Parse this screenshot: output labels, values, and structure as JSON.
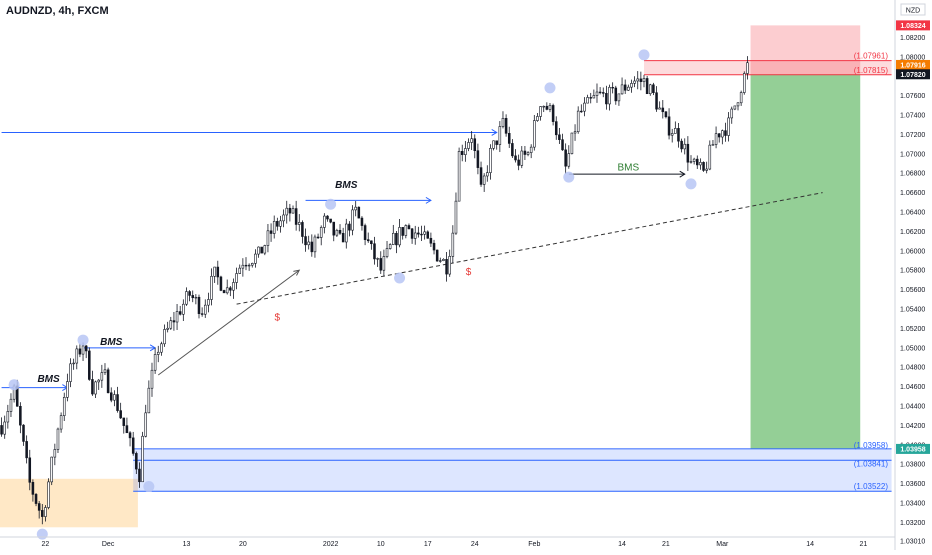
{
  "header": {
    "title": "AUDNZD, 4h, FXCM"
  },
  "currency_badge": "NZD",
  "chart_data": {
    "type": "candlestick",
    "symbol": "AUDNZD",
    "timeframe": "4h",
    "source": "FXCM",
    "ylim": [
      1.0305,
      1.084
    ],
    "y_ticks": [
      "1.08200",
      "1.08000",
      "1.07800",
      "1.07600",
      "1.07400",
      "1.07200",
      "1.07000",
      "1.06800",
      "1.06600",
      "1.06400",
      "1.06200",
      "1.06000",
      "1.05800",
      "1.05600",
      "1.05400",
      "1.05200",
      "1.05000",
      "1.04800",
      "1.04600",
      "1.04400",
      "1.04200",
      "1.04000",
      "1.03800",
      "1.03600",
      "1.03400",
      "1.03200",
      "1.03010"
    ],
    "x_ticks": [
      "22",
      "Dec",
      "13",
      "20",
      "2022",
      "10",
      "17",
      "24",
      "Feb",
      "14",
      "21",
      "Mar",
      "14",
      "21"
    ],
    "x_tick_index": [
      14,
      34,
      59,
      77,
      105,
      121,
      136,
      151,
      170,
      198,
      212,
      230,
      258,
      275
    ],
    "n_bars": 284,
    "last_bar": 238,
    "price_path": [
      [
        0,
        1.042
      ],
      [
        4,
        1.0455
      ],
      [
        9,
        1.036
      ],
      [
        13,
        1.0325
      ],
      [
        16,
        1.038
      ],
      [
        21,
        1.047
      ],
      [
        26,
        1.0505
      ],
      [
        29,
        1.046
      ],
      [
        33,
        1.047
      ],
      [
        37,
        1.044
      ],
      [
        41,
        1.04
      ],
      [
        44,
        1.037
      ],
      [
        46,
        1.044
      ],
      [
        50,
        1.05
      ],
      [
        55,
        1.053
      ],
      [
        60,
        1.0555
      ],
      [
        64,
        1.054
      ],
      [
        68,
        1.0575
      ],
      [
        72,
        1.056
      ],
      [
        77,
        1.059
      ],
      [
        82,
        1.0595
      ],
      [
        87,
        1.0625
      ],
      [
        92,
        1.064
      ],
      [
        96,
        1.062
      ],
      [
        99,
        1.06
      ],
      [
        103,
        1.063
      ],
      [
        108,
        1.061
      ],
      [
        113,
        1.064
      ],
      [
        118,
        1.06
      ],
      [
        121,
        1.058
      ],
      [
        125,
        1.061
      ],
      [
        129,
        1.0625
      ],
      [
        134,
        1.0615
      ],
      [
        138,
        1.06
      ],
      [
        142,
        1.0585
      ],
      [
        144,
        1.062
      ],
      [
        146,
        1.07
      ],
      [
        150,
        1.072
      ],
      [
        153,
        1.066
      ],
      [
        156,
        1.07
      ],
      [
        160,
        1.073
      ],
      [
        164,
        1.069
      ],
      [
        168,
        1.07
      ],
      [
        172,
        1.0755
      ],
      [
        176,
        1.074
      ],
      [
        178,
        1.071
      ],
      [
        180,
        1.0685
      ],
      [
        184,
        1.074
      ],
      [
        190,
        1.076
      ],
      [
        196,
        1.076
      ],
      [
        201,
        1.0775
      ],
      [
        205,
        1.0775
      ],
      [
        208,
        1.076
      ],
      [
        212,
        1.073
      ],
      [
        216,
        1.072
      ],
      [
        220,
        1.069
      ],
      [
        224,
        1.068
      ],
      [
        228,
        1.072
      ],
      [
        232,
        1.073
      ],
      [
        235,
        1.076
      ],
      [
        238,
        1.079
      ]
    ],
    "swing_points": [
      {
        "i": 4,
        "price": 1.0462
      },
      {
        "i": 13,
        "price": 1.0308
      },
      {
        "i": 26,
        "price": 1.0508
      },
      {
        "i": 47,
        "price": 1.0357
      },
      {
        "i": 105,
        "price": 1.0648
      },
      {
        "i": 127,
        "price": 1.0572
      },
      {
        "i": 175,
        "price": 1.0768
      },
      {
        "i": 181,
        "price": 1.0676
      },
      {
        "i": 205,
        "price": 1.0802
      },
      {
        "i": 220,
        "price": 1.0669
      }
    ],
    "demand_zone": {
      "i0": 0,
      "i1": 44,
      "top": 1.0365,
      "bottom": 1.0315
    },
    "support_zone": {
      "i0": 42,
      "i1": 284,
      "top": 1.0395,
      "bottom": 1.0352
    },
    "support_levels": [
      {
        "price": 1.03958,
        "label": "(1.03958)"
      },
      {
        "price": 1.03841,
        "label": "(1.03841)"
      },
      {
        "price": 1.03522,
        "label": "(1.03522)"
      }
    ],
    "supply_zone": {
      "i0": 205,
      "i1": 284,
      "top": 1.07961,
      "bottom": 1.07815
    },
    "supply_levels": [
      {
        "price": 1.07961,
        "label": "(1.07961)"
      },
      {
        "price": 1.07815,
        "label": "(1.07815)"
      }
    ],
    "position": {
      "i0": 239,
      "i1": 274,
      "entry": 1.0782,
      "stop": 1.08324,
      "target": 1.03958
    },
    "h_lines": [
      {
        "i0": 0,
        "i1": 158,
        "price": 1.0722,
        "arrow": true
      },
      {
        "i0": 0,
        "i1": 21,
        "price": 1.0459,
        "arrow": true
      },
      {
        "i0": 26,
        "i1": 49,
        "price": 1.05,
        "arrow": true
      },
      {
        "i0": 97,
        "i1": 137,
        "price": 1.0652,
        "arrow": true
      },
      {
        "i0": 181,
        "i1": 218,
        "price": 1.0679,
        "arrow": true
      }
    ],
    "trend_arrow": {
      "i0": 50,
      "p0": 1.0472,
      "i1": 95,
      "p1": 1.058
    },
    "dashed_trend": {
      "i0": 75,
      "p0": 1.0545,
      "i1": 262,
      "p1": 1.066
    },
    "labels": [
      {
        "text": "BMS",
        "i": 15,
        "price": 1.0465,
        "style": "ann"
      },
      {
        "text": "BMS",
        "i": 35,
        "price": 1.0503,
        "style": "ann"
      },
      {
        "text": "BMS",
        "i": 110,
        "price": 1.0665,
        "style": "ann"
      },
      {
        "text": "BMS",
        "i": 200,
        "price": 1.0683,
        "style": "bms2"
      },
      {
        "text": "$",
        "i": 88,
        "price": 1.0528,
        "style": "dollar"
      },
      {
        "text": "$",
        "i": 149,
        "price": 1.0575,
        "style": "dollar"
      }
    ],
    "price_badges": [
      {
        "label": "1.08324",
        "price": 1.08324,
        "color": "#f23645"
      },
      {
        "label": "1.07916",
        "price": 1.07916,
        "color": "#f57c00"
      },
      {
        "label": "1.07820",
        "price": 1.0782,
        "color": "#131722"
      },
      {
        "label": "1.03958",
        "price": 1.03958,
        "color": "#26a69a"
      }
    ],
    "colors": {
      "up": "#ffffff",
      "down": "#131722",
      "wick": "#131722",
      "support": "#2962ff",
      "supply": "#f23645",
      "target": "#4caf50",
      "demand": "#ffcc80",
      "markers": "#b7c5f5"
    }
  }
}
